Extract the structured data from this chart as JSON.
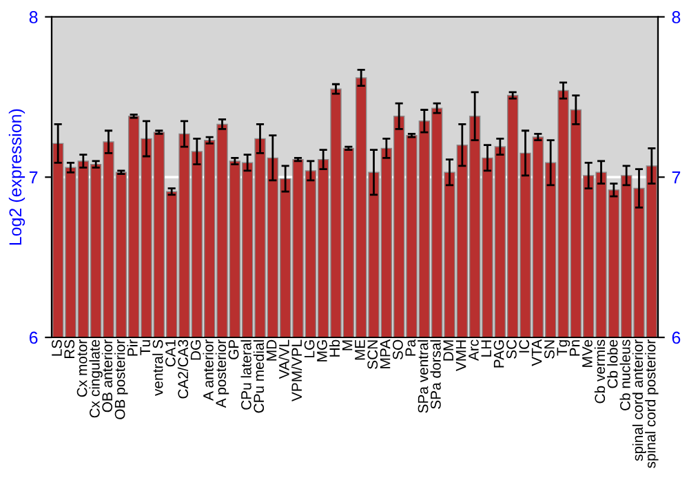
{
  "chart_data": {
    "type": "bar",
    "ylabel": "Log2 (expression)",
    "categories": [
      "LS",
      "RS",
      "Cx motor",
      "Cx cingulate",
      "OB anterior",
      "OB posterior",
      "Pir",
      "Tu",
      "ventral S",
      "CA1",
      "CA2/CA3",
      "DG",
      "A anterior",
      "A posterior",
      "GP",
      "CPu lateral",
      "CPu medial",
      "MD",
      "VA/VL",
      "VPM/VPL",
      "LG",
      "MG",
      "Hb",
      "M",
      "ME",
      "SCN",
      "MPA",
      "SO",
      "Pa",
      "SPa ventral",
      "SPa dorsal",
      "DM",
      "VMH",
      "Arc",
      "LH",
      "PAG",
      "SC",
      "IC",
      "VTA",
      "SN",
      "Tg",
      "Pn",
      "MVe",
      "Cb vermis",
      "Cb lobe",
      "Cb nucleus",
      "spinal cord anterior",
      "spinal cord posterior"
    ],
    "values": [
      7.21,
      7.06,
      7.1,
      7.08,
      7.22,
      7.03,
      7.38,
      7.24,
      7.28,
      6.91,
      7.27,
      7.16,
      7.23,
      7.33,
      7.1,
      7.09,
      7.24,
      7.12,
      6.99,
      7.11,
      7.04,
      7.11,
      7.55,
      7.18,
      7.62,
      7.03,
      7.18,
      7.38,
      7.26,
      7.35,
      7.43,
      7.03,
      7.2,
      7.38,
      7.12,
      7.19,
      7.51,
      7.15,
      7.25,
      7.09,
      7.54,
      7.42,
      7.01,
      7.03,
      6.92,
      7.01,
      6.93,
      7.07
    ],
    "errors": [
      0.12,
      0.03,
      0.04,
      0.02,
      0.07,
      0.01,
      0.01,
      0.11,
      0.01,
      0.02,
      0.08,
      0.08,
      0.02,
      0.03,
      0.02,
      0.05,
      0.09,
      0.14,
      0.08,
      0.01,
      0.06,
      0.06,
      0.03,
      0.01,
      0.05,
      0.14,
      0.06,
      0.08,
      0.01,
      0.07,
      0.03,
      0.08,
      0.13,
      0.15,
      0.08,
      0.05,
      0.02,
      0.14,
      0.02,
      0.14,
      0.05,
      0.09,
      0.08,
      0.07,
      0.04,
      0.06,
      0.12,
      0.11
    ],
    "color": "#b8302f",
    "ylim": [
      6,
      8
    ],
    "yticks": [
      6,
      7,
      8
    ],
    "y2lim": [
      6,
      8
    ],
    "y2ticks": [
      6,
      7,
      8
    ],
    "grid": "y"
  }
}
